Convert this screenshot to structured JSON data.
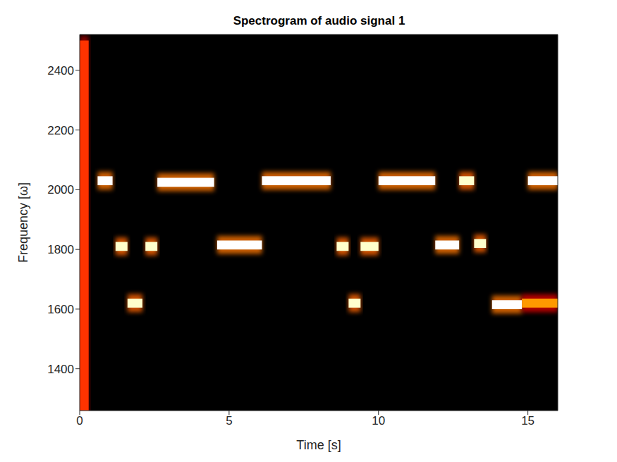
{
  "chart_data": {
    "type": "heatmap",
    "title": "Spectrogram of audio signal 1",
    "x_label": "Time [s]",
    "y_label": "Frequency [ω]",
    "xlim": [
      0,
      16
    ],
    "xticks": [
      0,
      5,
      10,
      15
    ],
    "ylim": [
      1260,
      2520
    ],
    "yticks": [
      1400,
      1600,
      1800,
      2000,
      2200,
      2400
    ],
    "grid": false,
    "cells": [
      {
        "x": [
          0.0,
          0.3
        ],
        "y": [
          1260,
          2500
        ],
        "value": 0.45
      },
      {
        "x": [
          0.6,
          1.1
        ],
        "y": [
          2015,
          2045
        ],
        "value": 1.0
      },
      {
        "x": [
          1.2,
          1.6
        ],
        "y": [
          1795,
          1825
        ],
        "value": 0.95
      },
      {
        "x": [
          1.6,
          2.1
        ],
        "y": [
          1605,
          1635
        ],
        "value": 0.95
      },
      {
        "x": [
          2.2,
          2.6
        ],
        "y": [
          1795,
          1825
        ],
        "value": 0.95
      },
      {
        "x": [
          2.6,
          4.5
        ],
        "y": [
          2010,
          2040
        ],
        "value": 1.0
      },
      {
        "x": [
          4.6,
          6.1
        ],
        "y": [
          1800,
          1830
        ],
        "value": 1.0
      },
      {
        "x": [
          6.1,
          8.4
        ],
        "y": [
          2015,
          2045
        ],
        "value": 1.0
      },
      {
        "x": [
          8.6,
          9.0
        ],
        "y": [
          1795,
          1825
        ],
        "value": 0.95
      },
      {
        "x": [
          9.0,
          9.4
        ],
        "y": [
          1605,
          1635
        ],
        "value": 0.95
      },
      {
        "x": [
          9.4,
          10.0
        ],
        "y": [
          1795,
          1825
        ],
        "value": 0.95
      },
      {
        "x": [
          10.0,
          11.9
        ],
        "y": [
          2015,
          2045
        ],
        "value": 1.0
      },
      {
        "x": [
          11.9,
          12.7
        ],
        "y": [
          1800,
          1830
        ],
        "value": 1.0
      },
      {
        "x": [
          12.7,
          13.2
        ],
        "y": [
          2015,
          2045
        ],
        "value": 0.95
      },
      {
        "x": [
          13.2,
          13.6
        ],
        "y": [
          1805,
          1835
        ],
        "value": 0.95
      },
      {
        "x": [
          13.8,
          14.8
        ],
        "y": [
          1600,
          1630
        ],
        "value": 1.0
      },
      {
        "x": [
          14.8,
          16.0
        ],
        "y": [
          1605,
          1635
        ],
        "value": 0.6
      },
      {
        "x": [
          15.0,
          16.0
        ],
        "y": [
          2015,
          2045
        ],
        "value": 1.0
      }
    ]
  }
}
